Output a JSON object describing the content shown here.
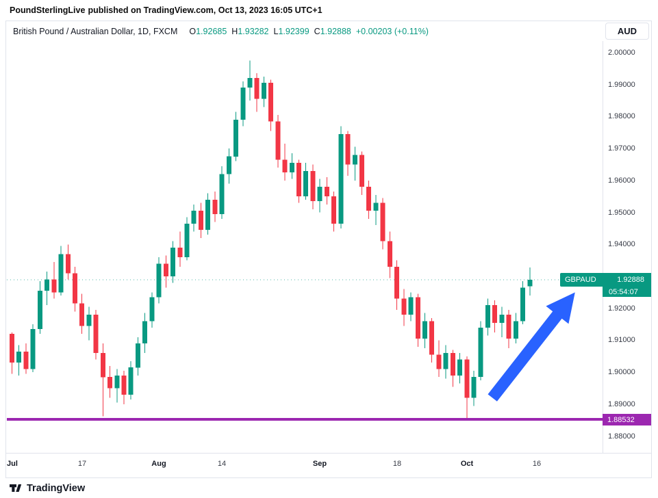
{
  "attribution": {
    "publisher": "PoundSterlingLive",
    "text": "published on TradingView.com, Oct 13, 2023 16:05 UTC+1"
  },
  "header": {
    "symbol_title": "British Pound / Australian Dollar, 1D, FXCM",
    "ohlc": [
      {
        "label": "O",
        "value": "1.92685"
      },
      {
        "label": "H",
        "value": "1.93282"
      },
      {
        "label": "L",
        "value": "1.92399"
      },
      {
        "label": "C",
        "value": "1.92888"
      }
    ],
    "change": "+0.00203 (+0.11%)",
    "currency_button": "AUD"
  },
  "price_label": {
    "symbol": "GBPAUD",
    "price": "1.92888",
    "value": 1.92888,
    "countdown": "05:54:07",
    "color": "#089981"
  },
  "level_line": {
    "label": "1.88532",
    "value": 1.88532,
    "color": "#9c27b0"
  },
  "footer": {
    "brand": "TradingView"
  },
  "chart_data": {
    "type": "candlestick",
    "symbol": "GBPAUD",
    "interval": "1D",
    "exchange": "FXCM",
    "up_color": "#089981",
    "down_color": "#f23645",
    "grid": false,
    "y_axis": {
      "min": 1.8748,
      "max": 2.0036
    },
    "price_axis_labels": [
      "2.00000",
      "1.99000",
      "1.98000",
      "1.97000",
      "1.96000",
      "1.95000",
      "1.94000",
      "1.93000",
      "1.92000",
      "1.91000",
      "1.90000",
      "1.89000",
      "1.88000"
    ],
    "x_ticks": [
      {
        "label": "Jul",
        "index": 0,
        "major": true
      },
      {
        "label": "17",
        "index": 10,
        "major": false
      },
      {
        "label": "Aug",
        "index": 21,
        "major": true
      },
      {
        "label": "14",
        "index": 30,
        "major": false
      },
      {
        "label": "Sep",
        "index": 44,
        "major": true
      },
      {
        "label": "18",
        "index": 55,
        "major": false
      },
      {
        "label": "Oct",
        "index": 65,
        "major": true
      },
      {
        "label": "16",
        "index": 75,
        "major": false
      }
    ],
    "last_price": 1.92888,
    "support_line": 1.88532,
    "arrow": {
      "color": "#2962ff",
      "from_index": 69,
      "from_price": 1.892,
      "to_index": 80.8,
      "to_price": 1.925
    },
    "candles": [
      [
        "Jul 3",
        1.912,
        1.9125,
        1.8995,
        1.903
      ],
      [
        "Jul 4",
        1.903,
        1.9085,
        1.899,
        1.9065
      ],
      [
        "Jul 5",
        1.9065,
        1.909,
        1.8995,
        1.901
      ],
      [
        "Jul 6",
        1.901,
        1.915,
        1.9,
        1.9135
      ],
      [
        "Jul 7",
        1.9135,
        1.9285,
        1.912,
        1.9255
      ],
      [
        "Jul 10",
        1.9255,
        1.9315,
        1.921,
        1.929
      ],
      [
        "Jul 11",
        1.929,
        1.9345,
        1.923,
        1.925
      ],
      [
        "Jul 12",
        1.925,
        1.9395,
        1.924,
        1.937
      ],
      [
        "Jul 13",
        1.937,
        1.94,
        1.929,
        1.931
      ],
      [
        "Jul 14",
        1.931,
        1.933,
        1.919,
        1.9215
      ],
      [
        "Jul 17",
        1.9215,
        1.9245,
        1.912,
        1.9145
      ],
      [
        "Jul 18",
        1.9145,
        1.9205,
        1.91,
        1.918
      ],
      [
        "Jul 19",
        1.918,
        1.9195,
        1.904,
        1.906
      ],
      [
        "Jul 20",
        1.906,
        1.909,
        1.8862,
        1.8985
      ],
      [
        "Jul 21",
        1.8985,
        1.902,
        1.892,
        1.895
      ],
      [
        "Jul 24",
        1.895,
        1.901,
        1.8905,
        1.899
      ],
      [
        "Jul 25",
        1.899,
        1.9005,
        1.89,
        1.893
      ],
      [
        "Jul 26",
        1.893,
        1.9035,
        1.8915,
        1.9015
      ],
      [
        "Jul 27",
        1.9015,
        1.911,
        1.899,
        1.909
      ],
      [
        "Jul 28",
        1.909,
        1.9185,
        1.906,
        1.916
      ],
      [
        "Jul 31",
        1.916,
        1.925,
        1.914,
        1.9235
      ],
      [
        "Aug 1",
        1.9235,
        1.936,
        1.9215,
        1.934
      ],
      [
        "Aug 2",
        1.934,
        1.9365,
        1.9265,
        1.93
      ],
      [
        "Aug 3",
        1.93,
        1.941,
        1.928,
        1.939
      ],
      [
        "Aug 4",
        1.939,
        1.944,
        1.933,
        1.936
      ],
      [
        "Aug 7",
        1.936,
        1.9485,
        1.935,
        1.9465
      ],
      [
        "Aug 8",
        1.9465,
        1.9525,
        1.944,
        1.9505
      ],
      [
        "Aug 9",
        1.9505,
        1.953,
        1.942,
        1.9445
      ],
      [
        "Aug 10",
        1.9445,
        1.956,
        1.943,
        1.954
      ],
      [
        "Aug 11",
        1.954,
        1.9565,
        1.947,
        1.9495
      ],
      [
        "Aug 14",
        1.9495,
        1.9645,
        1.948,
        1.962
      ],
      [
        "Aug 15",
        1.962,
        1.97,
        1.959,
        1.9675
      ],
      [
        "Aug 16",
        1.9675,
        1.9815,
        1.966,
        1.979
      ],
      [
        "Aug 17",
        1.979,
        1.991,
        1.977,
        1.989
      ],
      [
        "Aug 18",
        1.989,
        1.9975,
        1.985,
        1.992
      ],
      [
        "Aug 21",
        1.992,
        1.9935,
        1.9815,
        1.9855
      ],
      [
        "Aug 22",
        1.9855,
        1.9925,
        1.983,
        1.9905
      ],
      [
        "Aug 23",
        1.9905,
        1.9915,
        1.9755,
        1.9785
      ],
      [
        "Aug 24",
        1.9785,
        1.9805,
        1.964,
        1.9665
      ],
      [
        "Aug 25",
        1.9665,
        1.9715,
        1.96,
        1.9625
      ],
      [
        "Aug 28",
        1.9625,
        1.9685,
        1.9605,
        1.9655
      ],
      [
        "Aug 29",
        1.9655,
        1.9665,
        1.953,
        1.955
      ],
      [
        "Aug 30",
        1.955,
        1.9655,
        1.954,
        1.963
      ],
      [
        "Aug 31",
        1.963,
        1.965,
        1.951,
        1.9535
      ],
      [
        "Sep 1",
        1.9535,
        1.9605,
        1.95,
        1.958
      ],
      [
        "Sep 4",
        1.958,
        1.961,
        1.9525,
        1.955
      ],
      [
        "Sep 5",
        1.955,
        1.9565,
        1.944,
        1.9465
      ],
      [
        "Sep 6",
        1.9465,
        1.977,
        1.945,
        1.9745
      ],
      [
        "Sep 7",
        1.9745,
        1.9755,
        1.9615,
        1.965
      ],
      [
        "Sep 8",
        1.965,
        1.9705,
        1.96,
        1.968
      ],
      [
        "Sep 11",
        1.968,
        1.969,
        1.9555,
        1.958
      ],
      [
        "Sep 12",
        1.958,
        1.96,
        1.948,
        1.9505
      ],
      [
        "Sep 13",
        1.9505,
        1.9555,
        1.946,
        1.953
      ],
      [
        "Sep 14",
        1.953,
        1.9545,
        1.9385,
        1.941
      ],
      [
        "Sep 15",
        1.941,
        1.944,
        1.9295,
        1.933
      ],
      [
        "Sep 18",
        1.933,
        1.935,
        1.9195,
        1.923
      ],
      [
        "Sep 19",
        1.923,
        1.926,
        1.9145,
        1.918
      ],
      [
        "Sep 20",
        1.918,
        1.925,
        1.916,
        1.9235
      ],
      [
        "Sep 21",
        1.9235,
        1.9245,
        1.908,
        1.9105
      ],
      [
        "Sep 22",
        1.9105,
        1.9185,
        1.9075,
        1.916
      ],
      [
        "Sep 25",
        1.916,
        1.917,
        1.903,
        1.9055
      ],
      [
        "Sep 26",
        1.9055,
        1.91,
        1.8985,
        1.901
      ],
      [
        "Sep 27",
        1.901,
        1.9085,
        1.898,
        1.906
      ],
      [
        "Sep 28",
        1.906,
        1.907,
        1.8955,
        1.899
      ],
      [
        "Sep 29",
        1.899,
        1.906,
        1.8965,
        1.904
      ],
      [
        "Oct 2",
        1.904,
        1.905,
        1.8853,
        1.892
      ],
      [
        "Oct 3",
        1.892,
        1.9005,
        1.8895,
        1.8985
      ],
      [
        "Oct 4",
        1.8985,
        1.916,
        1.8975,
        1.914
      ],
      [
        "Oct 5",
        1.914,
        1.923,
        1.9115,
        1.921
      ],
      [
        "Oct 6",
        1.921,
        1.9225,
        1.9125,
        1.9155
      ],
      [
        "Oct 9",
        1.9155,
        1.9205,
        1.911,
        1.918
      ],
      [
        "Oct 10",
        1.918,
        1.9195,
        1.9075,
        1.9105
      ],
      [
        "Oct 11",
        1.9105,
        1.9185,
        1.909,
        1.916
      ],
      [
        "Oct 12",
        1.916,
        1.9285,
        1.915,
        1.9265
      ],
      [
        "Oct 13",
        1.92685,
        1.93282,
        1.92399,
        1.92888
      ]
    ]
  }
}
